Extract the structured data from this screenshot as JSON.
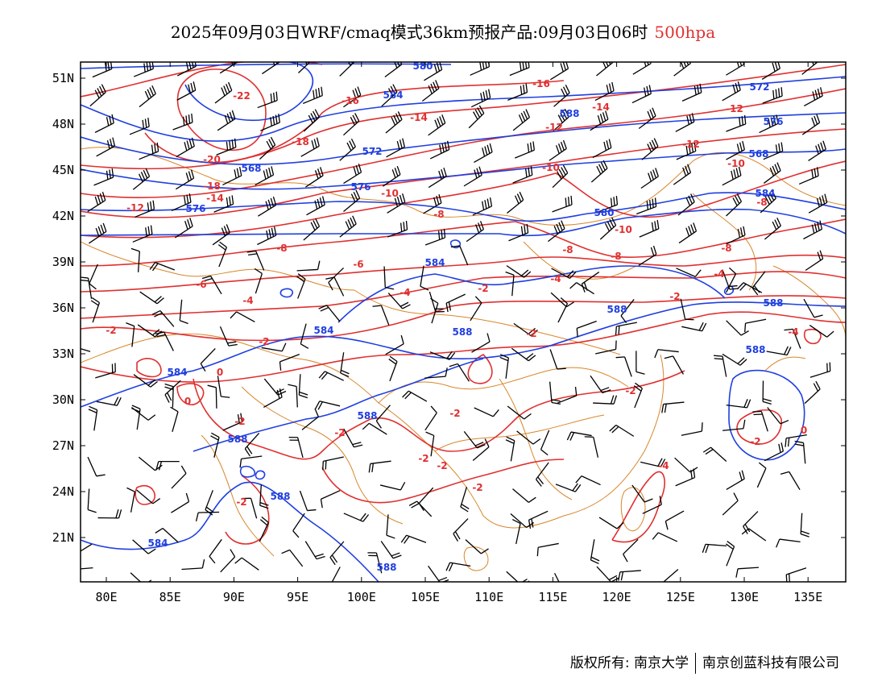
{
  "title": {
    "main": "2025年09月03日WRF/cmaq模式36km预报产品:09月03日06时",
    "level": "500hpa"
  },
  "colors": {
    "height": "#1f3fe0",
    "temperature": "#e03030",
    "borders": "#d9862a",
    "barbs": "#000000",
    "frame": "#000000"
  },
  "axes": {
    "lat_labels": [
      "51N",
      "48N",
      "45N",
      "42N",
      "39N",
      "36N",
      "33N",
      "30N",
      "27N",
      "24N",
      "21N"
    ],
    "lon_labels": [
      "80E",
      "85E",
      "90E",
      "95E",
      "100E",
      "105E",
      "110E",
      "115E",
      "120E",
      "125E",
      "130E",
      "135E"
    ]
  },
  "height_labels": [
    "580",
    "584",
    "572",
    "576",
    "568",
    "588"
  ],
  "temperature_labels": [
    "-22",
    "-20",
    "-18",
    "-16",
    "-14",
    "-12",
    "-10",
    "-8",
    "-6",
    "-4",
    "-2",
    "0"
  ],
  "copyright": {
    "left": "版权所有: 南京大学",
    "right": "南京创蓝科技有限公司"
  }
}
